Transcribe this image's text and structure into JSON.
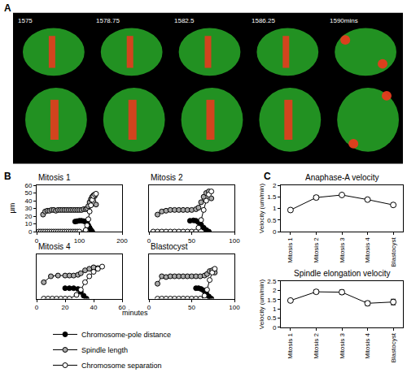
{
  "panel_labels": [
    "A",
    "B",
    "C"
  ],
  "image_strip": {
    "frame_labels": [
      "1575",
      "1578.75",
      "1582.5",
      "1586.25",
      "1590mins"
    ]
  },
  "panel_b_axis_labels": {
    "x": "minutes",
    "y": "µm"
  },
  "chart_data": [
    {
      "type": "scatter",
      "title": "Mitosis 1",
      "xlim": [
        0,
        200
      ],
      "xticks": [
        0,
        100,
        200
      ],
      "ylim": [
        0,
        60
      ],
      "yticks": [
        0,
        10,
        20,
        30,
        40,
        50,
        60
      ],
      "grid": false,
      "series": [
        {
          "name": "Chromosome-pole distance",
          "color": "#000000",
          "marker": "circle",
          "x": [
            90,
            95,
            100,
            105,
            110,
            115,
            118,
            121,
            124,
            127,
            130
          ],
          "values": [
            13,
            13.5,
            14,
            14,
            13.5,
            13,
            11,
            8,
            5,
            2,
            0
          ]
        },
        {
          "name": "Spindle length",
          "color": "#aaaaaa",
          "marker": "circle",
          "x": [
            15,
            20,
            25,
            30,
            35,
            40,
            45,
            50,
            55,
            60,
            65,
            70,
            75,
            80,
            85,
            90,
            95,
            100,
            105,
            110,
            115,
            118,
            121,
            124,
            127,
            130,
            133,
            136,
            139
          ],
          "values": [
            22,
            26,
            27,
            27,
            28,
            28,
            27,
            28,
            28,
            28,
            28,
            28,
            28,
            28,
            28,
            28,
            28,
            28,
            28,
            29,
            29,
            30,
            33,
            38,
            42,
            45,
            47,
            46,
            35
          ]
        },
        {
          "name": "Chromosome separation",
          "color": "#ffffff",
          "marker": "circle",
          "x": [
            5,
            10,
            15,
            20,
            25,
            30,
            35,
            40,
            45,
            50,
            55,
            60,
            65,
            70,
            75,
            80,
            85,
            90,
            95,
            100,
            115,
            118,
            121,
            124,
            127,
            130,
            133,
            136,
            139
          ],
          "values": [
            0,
            0,
            0,
            0,
            0,
            0,
            0,
            0,
            0,
            0,
            0,
            0,
            0,
            0,
            0,
            0,
            0,
            0,
            0,
            0,
            2,
            8,
            16,
            26,
            34,
            41,
            46,
            48,
            49
          ]
        }
      ]
    },
    {
      "type": "scatter",
      "title": "Mitosis 2",
      "xlim": [
        0,
        100
      ],
      "xticks": [
        0,
        50,
        100
      ],
      "ylim": [
        0,
        60
      ],
      "tick_labels": "x",
      "grid": false,
      "series": [
        {
          "name": "Chromosome-pole distance",
          "color": "#000000",
          "marker": "circle",
          "x": [
            48,
            52,
            55,
            58,
            61,
            64,
            67,
            70
          ],
          "values": [
            14,
            14.5,
            14,
            12,
            9,
            5,
            2,
            0
          ]
        },
        {
          "name": "Spindle length",
          "color": "#aaaaaa",
          "marker": "circle",
          "x": [
            10,
            15,
            20,
            25,
            30,
            35,
            40,
            45,
            50,
            55,
            58,
            61,
            64,
            67,
            70,
            73
          ],
          "values": [
            22,
            26,
            27,
            28,
            28,
            28,
            28,
            28,
            28,
            29,
            31,
            38,
            45,
            50,
            52,
            43
          ]
        },
        {
          "name": "Chromosome separation",
          "color": "#ffffff",
          "marker": "circle",
          "x": [
            5,
            10,
            15,
            20,
            25,
            30,
            35,
            40,
            45,
            50,
            55,
            58,
            61,
            64,
            67,
            70,
            73
          ],
          "values": [
            0,
            0,
            0,
            0,
            0,
            0,
            0,
            0,
            0,
            0,
            0,
            5,
            15,
            28,
            40,
            48,
            52
          ]
        }
      ]
    },
    {
      "type": "scatter",
      "title": "Mitosis 4",
      "xlim": [
        0,
        60
      ],
      "xticks": [
        0,
        20,
        40,
        60
      ],
      "ylim": [
        0,
        60
      ],
      "tick_labels": "x",
      "grid": false,
      "series": [
        {
          "name": "Chromosome-pole distance",
          "color": "#000000",
          "marker": "circle",
          "x": [
            20,
            23,
            26,
            29,
            31,
            33,
            35
          ],
          "values": [
            14,
            14,
            14,
            13,
            9,
            4,
            0
          ]
        },
        {
          "name": "Spindle length",
          "color": "#aaaaaa",
          "marker": "circle",
          "x": [
            5,
            10,
            15,
            20,
            23,
            26,
            29,
            31,
            34,
            37,
            40,
            43
          ],
          "values": [
            22,
            30,
            31,
            31,
            31,
            31,
            32,
            34,
            38,
            40,
            42,
            41
          ]
        },
        {
          "name": "Chromosome separation",
          "color": "#ffffff",
          "marker": "circle",
          "x": [
            5,
            8,
            11,
            14,
            17,
            20,
            23,
            28,
            31,
            34,
            37,
            40,
            43,
            46
          ],
          "values": [
            0,
            0,
            0,
            0,
            0,
            0,
            0,
            5,
            12,
            22,
            30,
            36,
            40,
            43
          ]
        }
      ]
    },
    {
      "type": "scatter",
      "title": "Blastocyst",
      "xlim": [
        0,
        100
      ],
      "xticks": [
        0,
        50,
        100
      ],
      "ylim": [
        0,
        60
      ],
      "tick_labels": "x",
      "grid": false,
      "series": [
        {
          "name": "Chromosome-pole distance",
          "color": "#000000",
          "marker": "circle",
          "x": [
            55,
            58,
            61,
            64,
            67,
            70,
            73
          ],
          "values": [
            14,
            14,
            13,
            11,
            7,
            3,
            0
          ]
        },
        {
          "name": "Spindle length",
          "color": "#aaaaaa",
          "marker": "circle",
          "x": [
            10,
            15,
            20,
            25,
            30,
            35,
            40,
            45,
            50,
            55,
            60,
            65,
            68,
            71,
            74,
            77
          ],
          "values": [
            20,
            30,
            29,
            30,
            30,
            30,
            30,
            30,
            30,
            30,
            30,
            31,
            33,
            37,
            38,
            35
          ]
        },
        {
          "name": "Chromosome separation",
          "color": "#ffffff",
          "marker": "circle",
          "x": [
            10,
            15,
            20,
            25,
            30,
            35,
            40,
            45,
            50,
            55,
            60,
            65,
            68,
            71,
            74,
            77
          ],
          "values": [
            0,
            0,
            0,
            0,
            0,
            0,
            0,
            0,
            0,
            0,
            0,
            4,
            12,
            25,
            35,
            40
          ]
        }
      ]
    },
    {
      "type": "line",
      "title": "Anaphase-A velocity",
      "y_label": "Velocity (um/min)",
      "categories": [
        "Mitosis 1",
        "Mitosis 2",
        "Mitosis 3",
        "Mitosis 4",
        "Blastocyst"
      ],
      "values": [
        0.93,
        1.47,
        1.58,
        1.38,
        1.15
      ],
      "errors": [
        0.03,
        0.08,
        0.05,
        0.03,
        0.07
      ],
      "color": "#ffffff",
      "marker": "circle",
      "ylim": [
        0,
        2
      ],
      "yticks": [
        0,
        0.5,
        1,
        1.5,
        2
      ],
      "grid": false
    },
    {
      "type": "line",
      "title": "Spindle elongation velocity",
      "y_label": "Velocity (um/min)",
      "categories": [
        "Mitosis 1",
        "Mitosis 2",
        "Mitosis 3",
        "Mitosis 4",
        "Blastocyst"
      ],
      "values": [
        1.45,
        1.92,
        1.9,
        1.3,
        1.37
      ],
      "errors": [
        0.05,
        0.1,
        0.12,
        0.12,
        0.15
      ],
      "color": "#ffffff",
      "marker": "circle",
      "ylim": [
        0,
        2.5
      ],
      "yticks": [
        0,
        0.5,
        1,
        1.5,
        2,
        2.5
      ],
      "grid": false
    }
  ]
}
